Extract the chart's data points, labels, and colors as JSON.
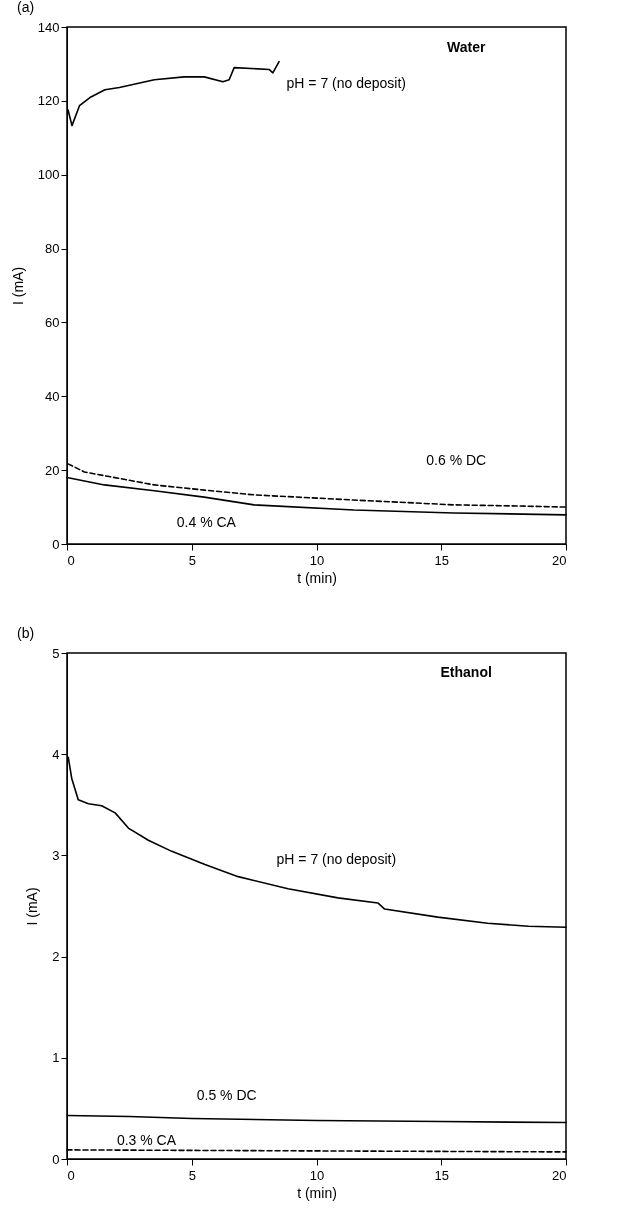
{
  "chart_data": [
    {
      "type": "line",
      "title": "(a)",
      "xlabel": "t (min)",
      "ylabel": "I (mA)",
      "annotations": [
        "Water"
      ],
      "xlim": [
        0,
        20
      ],
      "xticks": [
        0,
        5,
        10,
        15,
        20
      ],
      "ylim": [
        0,
        140
      ],
      "yticks": [
        0,
        20,
        40,
        60,
        80,
        100,
        120,
        140
      ],
      "grid": false,
      "series": [
        {
          "name": "pH = 7 (no deposit)",
          "color": "#000000",
          "line_style": "solid",
          "x": [
            0.04,
            0.2,
            0.5,
            0.92,
            1.52,
            2.1,
            3.5,
            4.7,
            5.5,
            6.25,
            6.5,
            6.7,
            8.1,
            8.25,
            8.5
          ],
          "values": [
            117.6,
            113.3,
            118.7,
            120.9,
            123,
            123.6,
            125.7,
            126.5,
            126.5,
            125.2,
            125.7,
            129,
            128.5,
            127.6,
            130.6
          ]
        },
        {
          "name": "0.6 % DC",
          "color": "#000000",
          "line_style": "dashed",
          "x": [
            0.04,
            0.7,
            3.5,
            5.5,
            7.5,
            11.5,
            15.5,
            18,
            20
          ],
          "values": [
            21.7,
            19.5,
            16,
            14.6,
            13.3,
            11.9,
            10.6,
            10.3,
            10
          ]
        },
        {
          "name": "0.4 % CA",
          "color": "#000000",
          "line_style": "solid",
          "x": [
            0,
            1.5,
            3.5,
            5.5,
            7.5,
            11.5,
            15.5,
            20
          ],
          "values": [
            18,
            16,
            14.4,
            12.7,
            10.6,
            9.2,
            8.4,
            7.9
          ]
        }
      ]
    },
    {
      "type": "line",
      "title": "(b)",
      "xlabel": "t (min)",
      "ylabel": "I (mA)",
      "annotations": [
        "Ethanol"
      ],
      "xlim": [
        0,
        20
      ],
      "xticks": [
        0,
        5,
        10,
        15,
        20
      ],
      "ylim": [
        0,
        5
      ],
      "yticks": [
        0,
        1,
        2,
        3,
        4,
        5
      ],
      "grid": false,
      "series": [
        {
          "name": "pH = 7 (no deposit)",
          "color": "#000000",
          "line_style": "solid",
          "x": [
            0.05,
            0.19,
            0.45,
            0.86,
            1.39,
            1.93,
            2.46,
            3.26,
            4.2,
            5.53,
            6.86,
            8.86,
            10.86,
            12.46,
            12.73,
            14.86,
            16.86,
            18.5,
            20
          ],
          "values": [
            3.97,
            3.76,
            3.55,
            3.51,
            3.49,
            3.42,
            3.27,
            3.15,
            3.04,
            2.91,
            2.79,
            2.67,
            2.58,
            2.53,
            2.47,
            2.39,
            2.33,
            2.3,
            2.29
          ]
        },
        {
          "name": "0.5 % DC",
          "color": "#000000",
          "line_style": "solid",
          "x": [
            0,
            2.5,
            5,
            10,
            15,
            20
          ],
          "values": [
            0.43,
            0.42,
            0.4,
            0.38,
            0.37,
            0.36
          ]
        },
        {
          "name": "0.3 % CA",
          "color": "#000000",
          "line_style": "dashed",
          "x": [
            0,
            10,
            20
          ],
          "values": [
            0.09,
            0.08,
            0.07
          ]
        }
      ]
    }
  ]
}
